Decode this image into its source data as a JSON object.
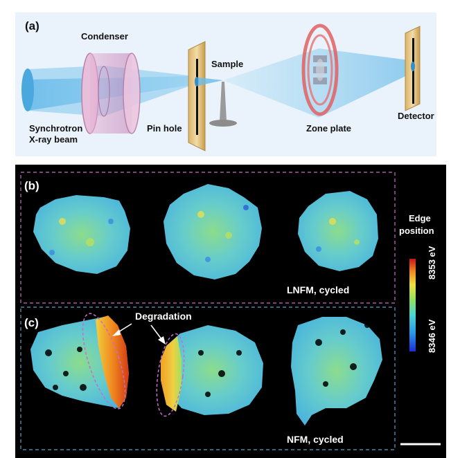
{
  "panel_a": {
    "tag": "(a)",
    "labels": {
      "condenser": "Condenser",
      "sample": "Sample",
      "pin_hole": "Pin hole",
      "zone_plate": "Zone plate",
      "detector": "Detector",
      "source_line1": "Synchrotron",
      "source_line2": "X-ray beam"
    }
  },
  "panel_b": {
    "tag": "(b)",
    "caption": "LNFM, cycled"
  },
  "panel_c": {
    "tag": "(c)",
    "caption": "NFM, cycled",
    "annotation": "Degradation"
  },
  "colorbar": {
    "title_line1": "Edge",
    "title_line2": "position",
    "max_label": "8353 eV",
    "min_label": "8346 eV"
  },
  "colors": {
    "panel_a_bg": "#eaf3fb",
    "dark_bg": "#000000",
    "box_b_border": "#c86ec8",
    "box_c_border": "#5aa0c8",
    "particle_base": "#5fc8c0"
  }
}
